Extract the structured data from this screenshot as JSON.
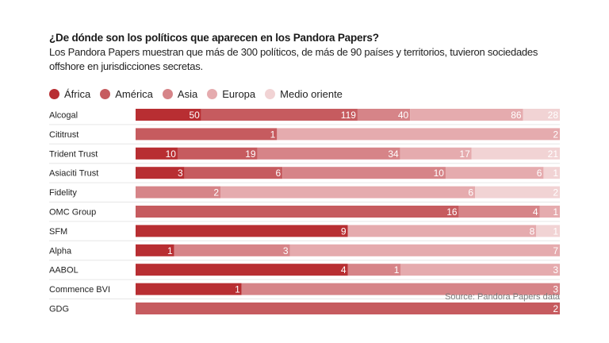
{
  "title": "¿De dónde son los políticos que aparecen en los Pandora Papers?",
  "subtitle": "Los Pandora Papers muestran que más de 300 políticos, de más de 90 países y territorios, tuvieron sociedades offshore en jurisdicciones secretas.",
  "source": "Source: Pandora Papers data",
  "chart_data": {
    "type": "bar",
    "orientation": "horizontal",
    "stacked": true,
    "normalized": true,
    "title": "¿De dónde son los políticos que aparecen en los Pandora Papers?",
    "subtitle": "Los Pandora Papers muestran que más de 300 políticos, de más de 90 países y territorios, tuvieron sociedades offshore en jurisdicciones secretas.",
    "xlabel": "",
    "ylabel": "",
    "grid": false,
    "legend_position": "top-left",
    "categories": [
      "Alcogal",
      "Cititrust",
      "Trident Trust",
      "Asiaciti Trust",
      "Fidelity",
      "OMC Group",
      "SFM",
      "Alpha",
      "AABOL",
      "Commence BVI",
      "GDG"
    ],
    "series": [
      {
        "name": "África",
        "color": "#b82e32",
        "values": [
          50,
          0,
          10,
          3,
          0,
          0,
          9,
          1,
          4,
          1,
          0
        ]
      },
      {
        "name": "América",
        "color": "#c65b5f",
        "values": [
          119,
          1,
          19,
          6,
          0,
          16,
          0,
          0,
          0,
          0,
          2
        ]
      },
      {
        "name": "Asia",
        "color": "#d68488",
        "values": [
          40,
          0,
          34,
          10,
          2,
          4,
          0,
          3,
          1,
          3,
          0
        ]
      },
      {
        "name": "Europa",
        "color": "#e5abae",
        "values": [
          86,
          2,
          17,
          6,
          6,
          1,
          8,
          7,
          3,
          0,
          0
        ]
      },
      {
        "name": "Medio oriente",
        "color": "#f1d3d4",
        "values": [
          28,
          0,
          21,
          1,
          2,
          0,
          1,
          0,
          0,
          0,
          0
        ]
      }
    ]
  }
}
